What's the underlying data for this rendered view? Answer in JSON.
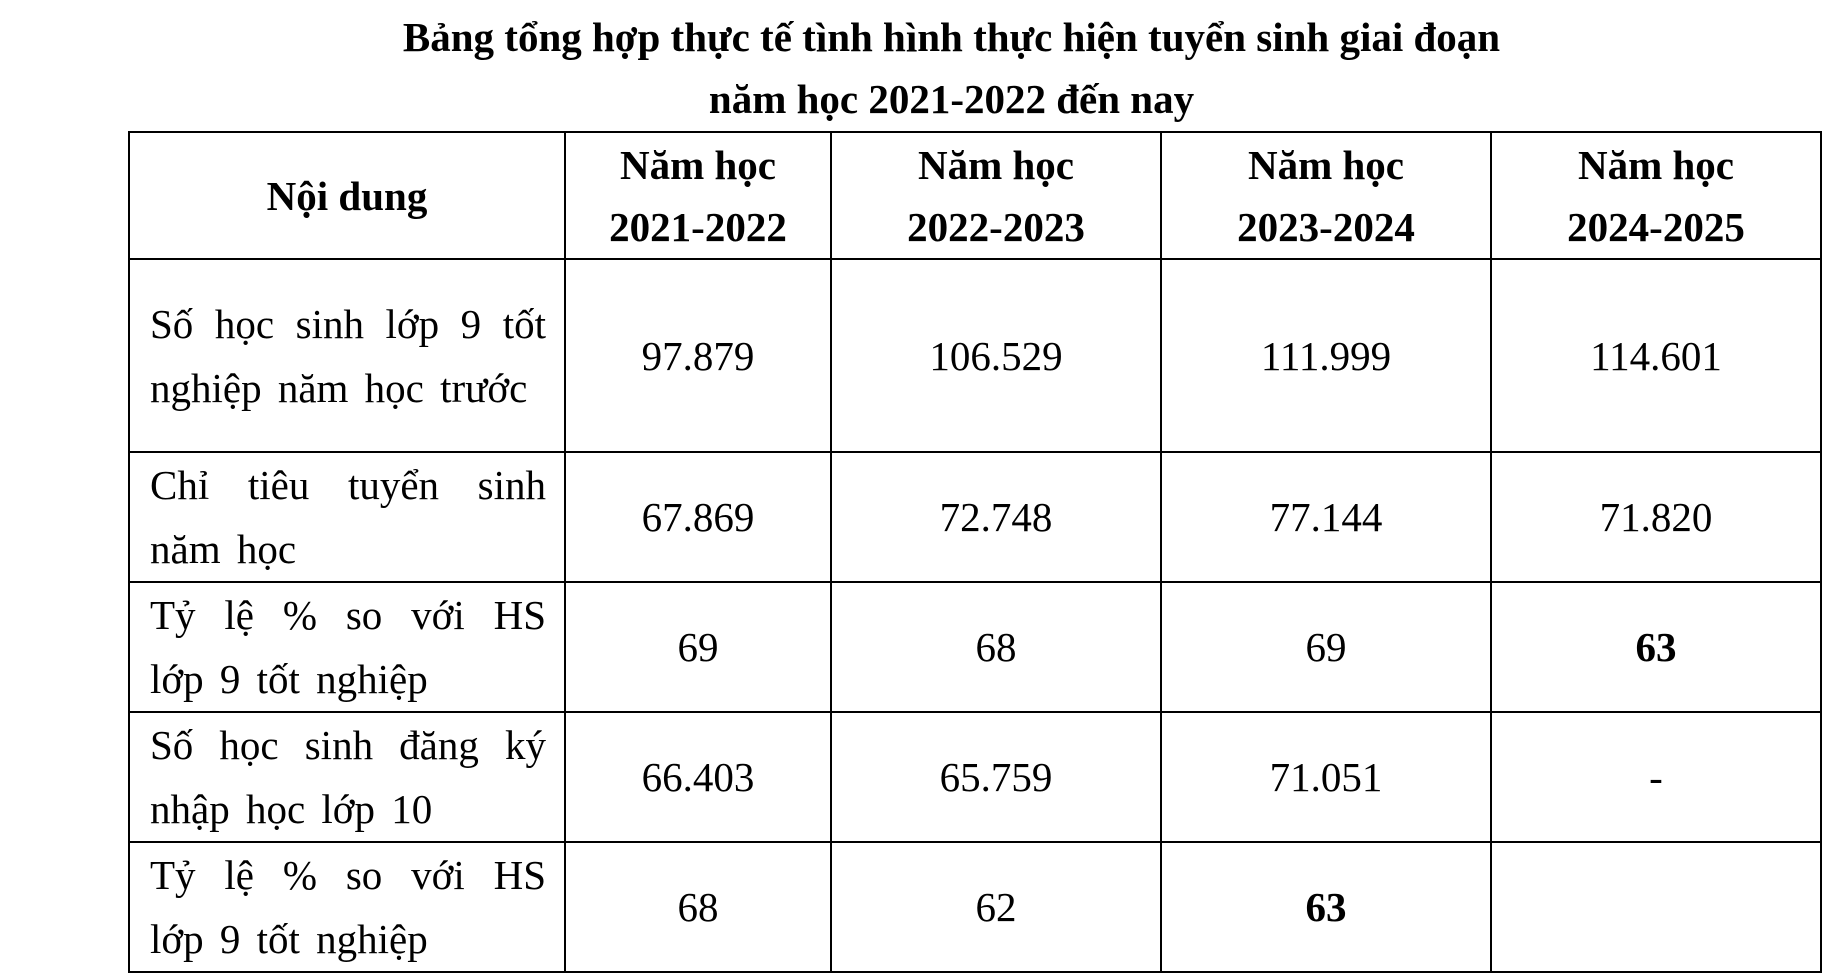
{
  "title_lines": [
    "Bảng tổng hợp thực tế tình hình thực hiện tuyển sinh giai đoạn",
    "năm học 2021-2022 đến nay"
  ],
  "table": {
    "header": [
      "Nội dung",
      [
        "Năm học",
        "2021-2022"
      ],
      [
        "Năm học",
        "2022-2023"
      ],
      [
        "Năm học",
        "2023-2024"
      ],
      [
        "Năm học",
        "2024-2025"
      ]
    ],
    "rows": [
      [
        "Số học sinh lớp 9 tốt nghiệp năm học trước",
        "97.879",
        "106.529",
        "111.999",
        "114.601"
      ],
      [
        "Chỉ tiêu tuyển sinh năm học",
        "67.869",
        "72.748",
        "77.144",
        "71.820"
      ],
      [
        "Tỷ lệ % so với HS lớp 9 tốt nghiệp",
        "69",
        "68",
        "69",
        "63"
      ],
      [
        "Số học sinh đăng ký nhập học lớp 10",
        "66.403",
        "65.759",
        "71.051",
        "-"
      ],
      [
        "Tỷ lệ % so với HS lớp 9 tốt nghiệp",
        "68",
        "62",
        "63"
      ]
    ]
  }
}
